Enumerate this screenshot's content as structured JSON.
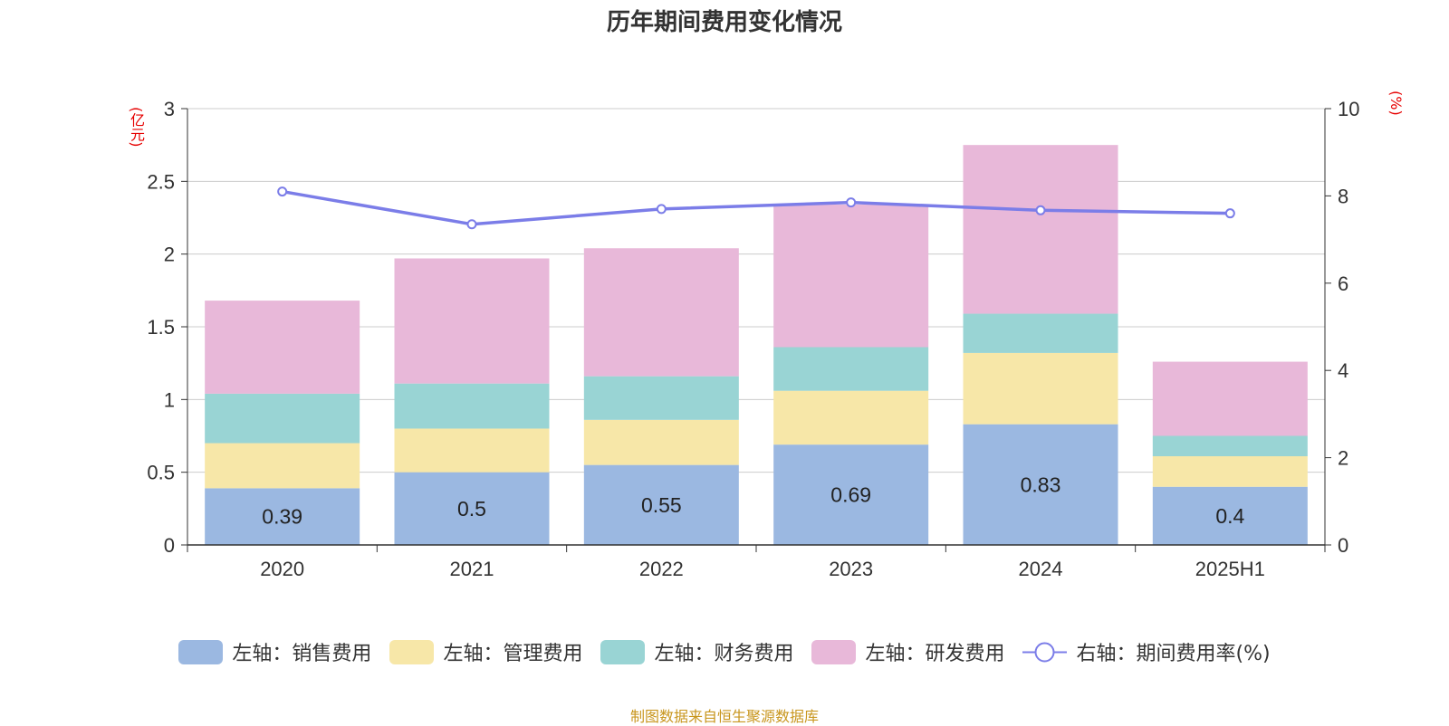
{
  "chart_data": {
    "type": "bar",
    "title": "历年期间费用变化情况",
    "categories": [
      "2020",
      "2021",
      "2022",
      "2023",
      "2024",
      "2025H1"
    ],
    "stacked": true,
    "left_axis": {
      "unit": "(亿元)",
      "ylim": [
        0,
        3
      ],
      "ticks": [
        "0",
        "0.5",
        "1",
        "1.5",
        "2",
        "2.5",
        "3"
      ]
    },
    "right_axis": {
      "unit": "(%)",
      "ylim": [
        0,
        10
      ],
      "ticks": [
        "0",
        "2",
        "4",
        "6",
        "8",
        "10"
      ]
    },
    "series": [
      {
        "name": "左轴：销售费用",
        "axis": "left",
        "kind": "bar",
        "color": "#9bb8e1",
        "values": [
          0.39,
          0.5,
          0.55,
          0.69,
          0.83,
          0.4
        ],
        "labels": [
          "0.39",
          "0.5",
          "0.55",
          "0.69",
          "0.83",
          "0.4"
        ]
      },
      {
        "name": "左轴：管理费用",
        "axis": "left",
        "kind": "bar",
        "color": "#f7e7a8",
        "values": [
          0.31,
          0.3,
          0.31,
          0.37,
          0.49,
          0.21
        ]
      },
      {
        "name": "左轴：财务费用",
        "axis": "left",
        "kind": "bar",
        "color": "#99d4d4",
        "values": [
          0.34,
          0.31,
          0.3,
          0.3,
          0.27,
          0.14
        ]
      },
      {
        "name": "左轴：研发费用",
        "axis": "left",
        "kind": "bar",
        "color": "#e8b8d9",
        "values": [
          0.64,
          0.86,
          0.88,
          0.98,
          1.16,
          0.51
        ]
      },
      {
        "name": "右轴：期间费用率(%)",
        "axis": "right",
        "kind": "line",
        "color": "#7b7de8",
        "values": [
          8.1,
          7.35,
          7.7,
          7.85,
          7.67,
          7.6
        ]
      }
    ],
    "grid": true,
    "legend_position": "bottom"
  },
  "source": "制图数据来自恒生聚源数据库"
}
